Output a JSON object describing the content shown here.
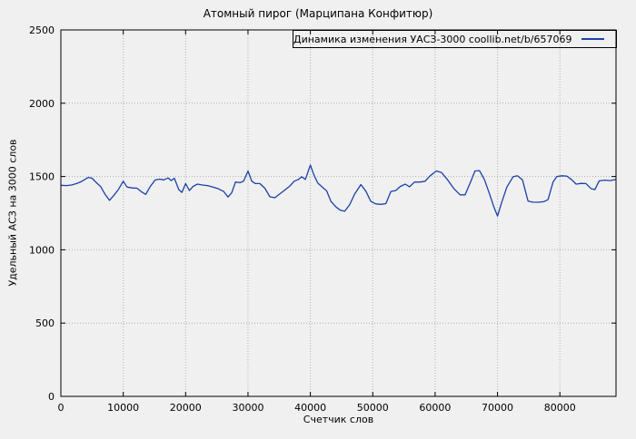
{
  "page": {
    "background_color": "#f0f0f0",
    "plot_border_color": "#000000",
    "grid_color": "#b0b0b0"
  },
  "chart_data": {
    "type": "line",
    "title": "Атомный пирог (Марципана Конфитюр)",
    "xlabel": "Счетчик слов",
    "ylabel": "Удельный АСЗ на 3000 слов",
    "xlim": [
      0,
      89000
    ],
    "ylim": [
      0,
      2500
    ],
    "xticks": [
      0,
      10000,
      20000,
      30000,
      40000,
      50000,
      60000,
      70000,
      80000
    ],
    "yticks": [
      0,
      500,
      1000,
      1500,
      2000,
      2500
    ],
    "grid": "dotted",
    "legend_position": "top-right-boxed",
    "series": [
      {
        "name": "Динамика изменения УАСЗ-3000 coollib.net/b/657069",
        "color": "#1a41a8",
        "points": [
          [
            0,
            1440
          ],
          [
            900,
            1438
          ],
          [
            1700,
            1442
          ],
          [
            2500,
            1452
          ],
          [
            3300,
            1466
          ],
          [
            4400,
            1494
          ],
          [
            5000,
            1488
          ],
          [
            5700,
            1458
          ],
          [
            6400,
            1430
          ],
          [
            7100,
            1378
          ],
          [
            7800,
            1337
          ],
          [
            8500,
            1372
          ],
          [
            9200,
            1410
          ],
          [
            10000,
            1468
          ],
          [
            10600,
            1428
          ],
          [
            11400,
            1422
          ],
          [
            12200,
            1420
          ],
          [
            12900,
            1396
          ],
          [
            13600,
            1378
          ],
          [
            14300,
            1430
          ],
          [
            15100,
            1476
          ],
          [
            15800,
            1482
          ],
          [
            16500,
            1477
          ],
          [
            17200,
            1490
          ],
          [
            17700,
            1472
          ],
          [
            18200,
            1488
          ],
          [
            18900,
            1410
          ],
          [
            19400,
            1392
          ],
          [
            20000,
            1452
          ],
          [
            20600,
            1405
          ],
          [
            21200,
            1432
          ],
          [
            21900,
            1448
          ],
          [
            22700,
            1442
          ],
          [
            23500,
            1438
          ],
          [
            24400,
            1428
          ],
          [
            25300,
            1415
          ],
          [
            26100,
            1398
          ],
          [
            26800,
            1360
          ],
          [
            27400,
            1390
          ],
          [
            28000,
            1462
          ],
          [
            28700,
            1458
          ],
          [
            29300,
            1468
          ],
          [
            30000,
            1538
          ],
          [
            30600,
            1468
          ],
          [
            31200,
            1452
          ],
          [
            31900,
            1452
          ],
          [
            32700,
            1420
          ],
          [
            33500,
            1362
          ],
          [
            34300,
            1355
          ],
          [
            35100,
            1382
          ],
          [
            35900,
            1408
          ],
          [
            36700,
            1435
          ],
          [
            37400,
            1468
          ],
          [
            38100,
            1480
          ],
          [
            38600,
            1498
          ],
          [
            39200,
            1480
          ],
          [
            40000,
            1578
          ],
          [
            40600,
            1508
          ],
          [
            41200,
            1455
          ],
          [
            41900,
            1428
          ],
          [
            42600,
            1402
          ],
          [
            43300,
            1330
          ],
          [
            44100,
            1292
          ],
          [
            44800,
            1270
          ],
          [
            45500,
            1263
          ],
          [
            46300,
            1308
          ],
          [
            47100,
            1380
          ],
          [
            48100,
            1445
          ],
          [
            48900,
            1400
          ],
          [
            49700,
            1330
          ],
          [
            50500,
            1313
          ],
          [
            51300,
            1310
          ],
          [
            52100,
            1315
          ],
          [
            52900,
            1398
          ],
          [
            53700,
            1405
          ],
          [
            54400,
            1432
          ],
          [
            55200,
            1448
          ],
          [
            55900,
            1430
          ],
          [
            56700,
            1462
          ],
          [
            57600,
            1462
          ],
          [
            58400,
            1468
          ],
          [
            59200,
            1505
          ],
          [
            60200,
            1538
          ],
          [
            61000,
            1528
          ],
          [
            62000,
            1478
          ],
          [
            63000,
            1418
          ],
          [
            64000,
            1375
          ],
          [
            64800,
            1375
          ],
          [
            65600,
            1455
          ],
          [
            66400,
            1538
          ],
          [
            67100,
            1540
          ],
          [
            67900,
            1480
          ],
          [
            68700,
            1385
          ],
          [
            69400,
            1295
          ],
          [
            70000,
            1230
          ],
          [
            70700,
            1328
          ],
          [
            71500,
            1428
          ],
          [
            72500,
            1498
          ],
          [
            73200,
            1505
          ],
          [
            74000,
            1478
          ],
          [
            74900,
            1332
          ],
          [
            75700,
            1325
          ],
          [
            76500,
            1324
          ],
          [
            77400,
            1328
          ],
          [
            78100,
            1342
          ],
          [
            78900,
            1462
          ],
          [
            79500,
            1500
          ],
          [
            80300,
            1505
          ],
          [
            81100,
            1503
          ],
          [
            81900,
            1478
          ],
          [
            82600,
            1448
          ],
          [
            83400,
            1453
          ],
          [
            84200,
            1452
          ],
          [
            85000,
            1418
          ],
          [
            85600,
            1410
          ],
          [
            86300,
            1470
          ],
          [
            87200,
            1475
          ],
          [
            88100,
            1472
          ],
          [
            89000,
            1480
          ]
        ]
      }
    ]
  }
}
